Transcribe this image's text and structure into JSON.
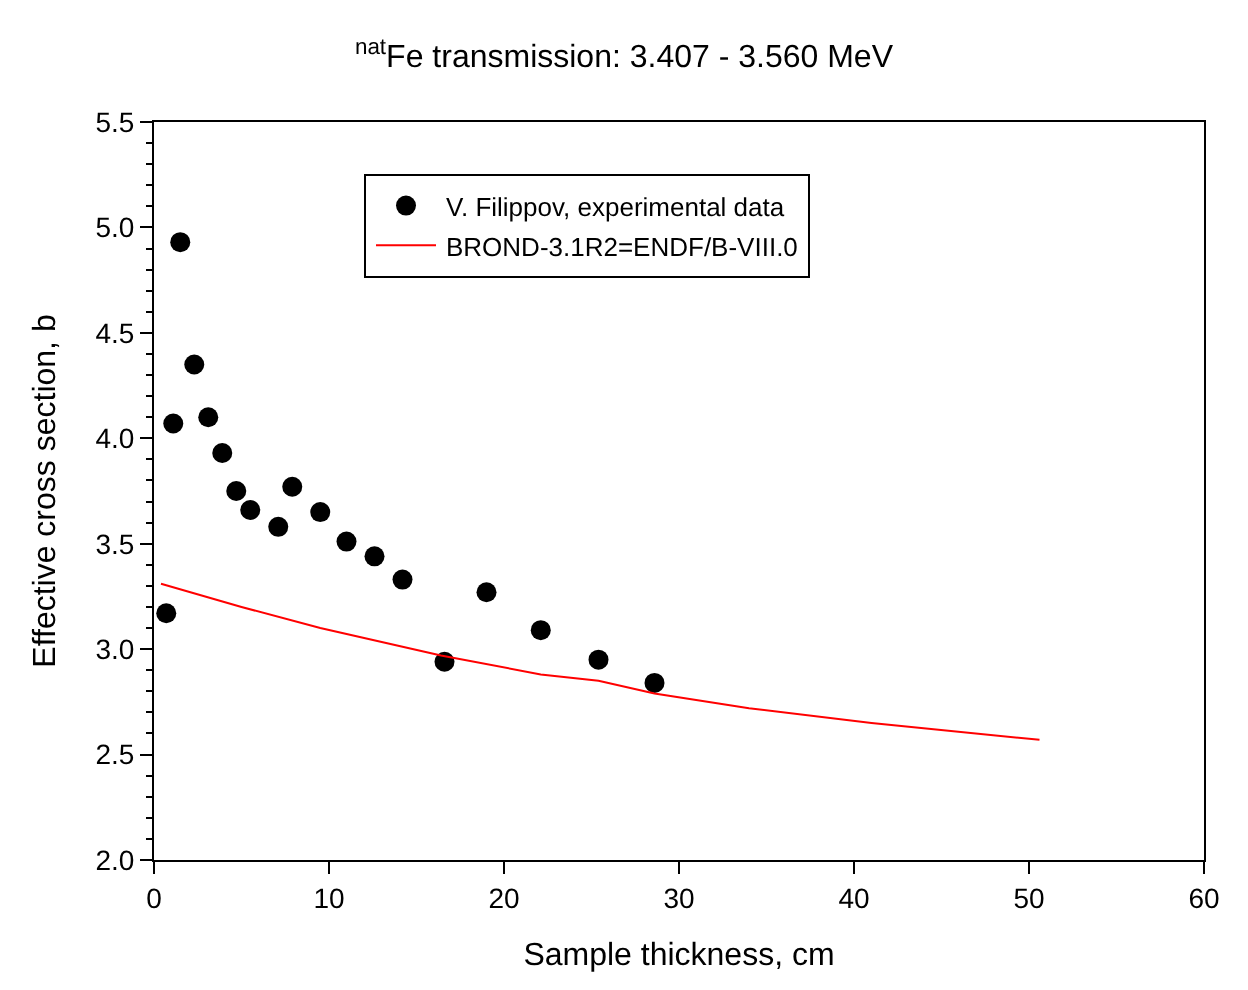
{
  "chart_data": {
    "type": "scatter",
    "title": "$^{nat}$Fe transmission: 3.407 - 3.560 MeV",
    "xlabel": "Sample thickness, cm",
    "ylabel": "Effective cross section, b",
    "xlim": [
      0,
      60
    ],
    "xticks": [
      0,
      10,
      20,
      30,
      40,
      50,
      60
    ],
    "ylim": [
      2.0,
      5.5
    ],
    "yticks": [
      {
        "value": 2.0,
        "label": "2.0"
      },
      {
        "value": 2.5,
        "label": "2.5"
      },
      {
        "value": 3.0,
        "label": "3.0"
      },
      {
        "value": 3.5,
        "label": "3.5"
      },
      {
        "value": 4.0,
        "label": "4.0"
      },
      {
        "value": 4.5,
        "label": "4.5"
      },
      {
        "value": 5.0,
        "label": "5.0"
      },
      {
        "value": 5.5,
        "label": "5.5"
      }
    ],
    "legend": "top left",
    "series": [
      {
        "name": "V. Filippov, experimental data",
        "marker": "circle",
        "color": "#000000",
        "x": [
          0.7,
          1.1,
          1.5,
          2.3,
          3.1,
          3.9,
          4.7,
          5.5,
          7.1,
          7.9,
          9.5,
          11.0,
          12.6,
          14.2,
          16.6,
          19.0,
          22.1,
          25.4,
          28.6
        ],
        "values": [
          3.17,
          4.07,
          4.93,
          4.35,
          4.1,
          3.93,
          3.75,
          3.66,
          3.58,
          3.77,
          3.65,
          3.51,
          3.44,
          3.33,
          2.94,
          3.27,
          3.09,
          2.95,
          2.84
        ]
      },
      {
        "name": "BROND-3.1R2=ENDF/B-VIII.0",
        "type": "line",
        "marker": "none",
        "color": "#ff0000",
        "x": [
          0.4,
          5.0,
          9.5,
          16.4,
          22.1,
          25.4,
          28.6,
          34.0,
          41.0,
          50.6
        ],
        "values": [
          3.31,
          3.2,
          3.1,
          2.97,
          2.88,
          2.85,
          2.79,
          2.72,
          2.65,
          2.57
        ]
      }
    ]
  }
}
